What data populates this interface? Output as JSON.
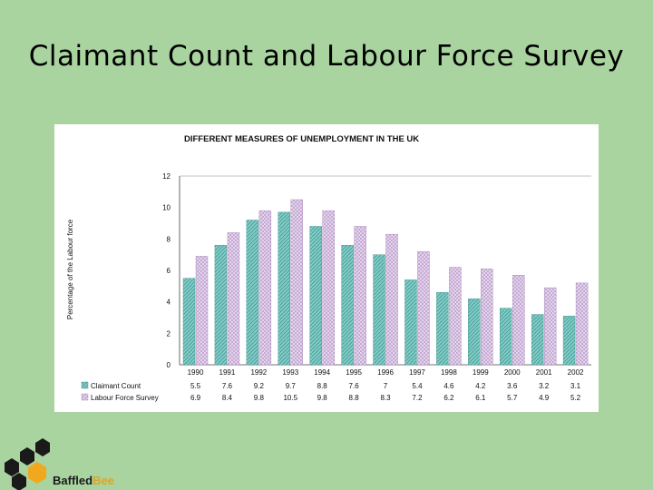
{
  "slide": {
    "title": "Claimant Count and Labour Force Survey"
  },
  "logo": {
    "text_dark": "Baffled",
    "text_accent": "Bee"
  },
  "colors": {
    "background": "#a9d4a0",
    "claimant_fill": "#7fcbc6",
    "lfs_fill": "#d9c8e3",
    "honeycomb_dark": "#1a1a1a",
    "honeycomb_gold": "#f0a81e"
  },
  "chart_data": {
    "type": "bar",
    "title": "DIFFERENT MEASURES OF UNEMPLOYMENT IN THE UK",
    "xlabel": "",
    "ylabel": "Percentage of the Labour force",
    "ylim": [
      0,
      12
    ],
    "yticks": [
      "0",
      "2",
      "4",
      "6",
      "8",
      "10",
      "12"
    ],
    "grid": false,
    "legend_position": "bottom-left (data table)",
    "categories": [
      "1990",
      "1991",
      "1992",
      "1993",
      "1994",
      "1995",
      "1996",
      "1997",
      "1998",
      "1999",
      "2000",
      "2001",
      "2002"
    ],
    "series": [
      {
        "name": "Claimant Count",
        "values": [
          5.5,
          7.6,
          9.2,
          9.7,
          8.8,
          7.6,
          7,
          5.4,
          4.6,
          4.2,
          3.6,
          3.2,
          3.1
        ],
        "labels": [
          "5.5",
          "7.6",
          "9.2",
          "9.7",
          "8.8",
          "7.6",
          "7",
          "5.4",
          "4.6",
          "4.2",
          "3.6",
          "3.2",
          "3.1"
        ]
      },
      {
        "name": "Labour Force Survey",
        "values": [
          6.9,
          8.4,
          9.8,
          10.5,
          9.8,
          8.8,
          8.3,
          7.2,
          6.2,
          6.1,
          5.7,
          4.9,
          5.2
        ],
        "labels": [
          "6.9",
          "8.4",
          "9.8",
          "10.5",
          "9.8",
          "8.8",
          "8.3",
          "7.2",
          "6.2",
          "6.1",
          "5.7",
          "4.9",
          "5.2"
        ]
      }
    ]
  }
}
